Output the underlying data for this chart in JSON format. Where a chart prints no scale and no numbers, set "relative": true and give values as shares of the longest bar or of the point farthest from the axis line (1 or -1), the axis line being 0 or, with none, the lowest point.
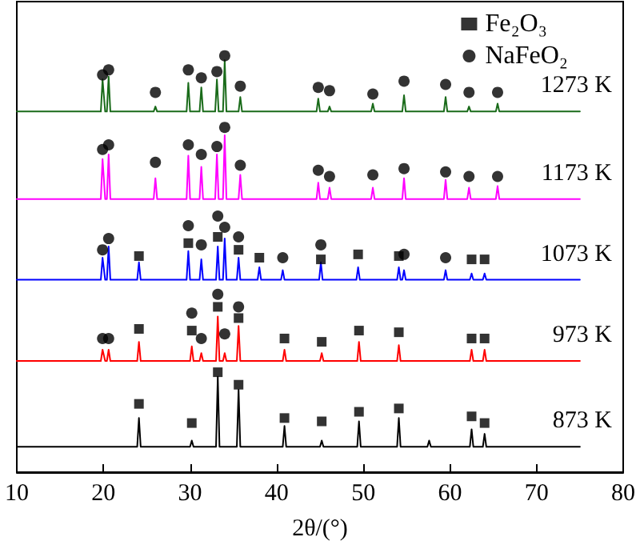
{
  "chart_data": {
    "type": "line",
    "relative": true,
    "xlabel": "2θ/(°)",
    "xlim": [
      10,
      80
    ],
    "xticks": [
      10,
      20,
      30,
      40,
      50,
      60,
      70,
      80
    ],
    "tick_labels": "x",
    "grid": false,
    "legend": "top right",
    "marker": "none",
    "series": [
      {
        "name": "1273 K",
        "color": "#1a6b1a",
        "x": [
          10,
          19.7,
          19.9,
          20.2,
          20.4,
          20.6,
          20.8,
          25.8,
          26,
          26.2,
          29.6,
          29.8,
          30,
          31.1,
          31.3,
          31.5,
          32.9,
          33.1,
          33.3,
          33.8,
          34,
          34.2,
          35.6,
          35.8,
          36,
          44.6,
          44.8,
          45,
          45.9,
          46.1,
          46.3,
          50.9,
          51.1,
          51.3,
          54.5,
          54.7,
          54.9,
          59.3,
          59.5,
          59.7,
          62,
          62.2,
          62.4,
          65.3,
          65.5,
          65.7,
          75
        ],
        "values": [
          0.866,
          0.866,
          0.943,
          0.866,
          0.866,
          0.95,
          0.866,
          0.866,
          0.878,
          0.866,
          0.866,
          0.935,
          0.866,
          0.866,
          0.924,
          0.866,
          0.866,
          0.943,
          0.866,
          0.866,
          0.989,
          0.866,
          0.866,
          0.901,
          0.866,
          0.866,
          0.897,
          0.866,
          0.866,
          0.878,
          0.866,
          0.866,
          0.885,
          0.866,
          0.866,
          0.905,
          0.866,
          0.866,
          0.901,
          0.866,
          0.866,
          0.878,
          0.866,
          0.866,
          0.885,
          0.866,
          0.866
        ]
      },
      {
        "name": "1173 K",
        "color": "#ff00ff",
        "x": [
          10,
          19.7,
          19.9,
          20.2,
          20.4,
          20.6,
          20.8,
          25.8,
          26,
          26.2,
          29.6,
          29.8,
          30,
          31.1,
          31.3,
          31.5,
          32.9,
          33.1,
          33.3,
          33.8,
          34,
          34.2,
          35.6,
          35.8,
          36,
          44.6,
          44.8,
          45,
          45.9,
          46.1,
          46.3,
          50.9,
          51.1,
          51.3,
          54.5,
          54.7,
          54.9,
          59.3,
          59.5,
          59.7,
          62,
          62.2,
          62.4,
          65.3,
          65.5,
          65.7,
          75
        ],
        "values": [
          0.656,
          0.656,
          0.752,
          0.656,
          0.656,
          0.763,
          0.656,
          0.656,
          0.706,
          0.656,
          0.656,
          0.76,
          0.656,
          0.656,
          0.733,
          0.656,
          0.656,
          0.763,
          0.656,
          0.656,
          0.809,
          0.656,
          0.656,
          0.714,
          0.656,
          0.656,
          0.695,
          0.656,
          0.656,
          0.683,
          0.656,
          0.656,
          0.683,
          0.656,
          0.656,
          0.706,
          0.656,
          0.656,
          0.702,
          0.656,
          0.656,
          0.683,
          0.656,
          0.656,
          0.687,
          0.656,
          0.656
        ]
      },
      {
        "name": "1073 K",
        "color": "#0000ff",
        "x": [
          10,
          19.7,
          19.9,
          20.2,
          20.4,
          20.6,
          20.8,
          23.9,
          24.1,
          24.3,
          29.6,
          29.8,
          30,
          31.1,
          31.3,
          31.5,
          33,
          33.2,
          33.4,
          33.8,
          34,
          34.2,
          35.4,
          35.6,
          35.8,
          37.8,
          38,
          38.2,
          40.5,
          40.7,
          40.9,
          44.9,
          45.1,
          45.3,
          49.2,
          49.4,
          49.6,
          53.9,
          54.1,
          54.3,
          54.5,
          54.7,
          54.9,
          59.3,
          59.5,
          59.7,
          62.3,
          62.5,
          62.7,
          63.8,
          64,
          64.2,
          75
        ],
        "values": [
          0.462,
          0.462,
          0.515,
          0.462,
          0.462,
          0.542,
          0.462,
          0.462,
          0.504,
          0.462,
          0.462,
          0.531,
          0.462,
          0.462,
          0.511,
          0.462,
          0.462,
          0.542,
          0.462,
          0.462,
          0.561,
          0.462,
          0.462,
          0.515,
          0.462,
          0.462,
          0.492,
          0.462,
          0.462,
          0.485,
          0.462,
          0.462,
          0.504,
          0.462,
          0.462,
          0.492,
          0.462,
          0.462,
          0.492,
          0.462,
          0.462,
          0.485,
          0.462,
          0.462,
          0.485,
          0.462,
          0.462,
          0.477,
          0.462,
          0.462,
          0.477,
          0.462,
          0.462
        ]
      },
      {
        "name": "973 K",
        "color": "#ff0000",
        "x": [
          10,
          19.7,
          19.9,
          20.2,
          20.4,
          20.6,
          20.8,
          23.9,
          24.1,
          24.3,
          30,
          30.2,
          30.4,
          31.1,
          31.3,
          31.5,
          33,
          33.2,
          33.4,
          33.8,
          34,
          34.2,
          35.4,
          35.6,
          35.8,
          40.7,
          40.9,
          41.1,
          45,
          45.2,
          45.4,
          49.3,
          49.5,
          49.7,
          53.9,
          54.1,
          54.3,
          62.3,
          62.5,
          62.7,
          63.8,
          64,
          64.2,
          75
        ],
        "values": [
          0.267,
          0.267,
          0.294,
          0.267,
          0.267,
          0.294,
          0.267,
          0.267,
          0.313,
          0.267,
          0.267,
          0.302,
          0.267,
          0.267,
          0.286,
          0.267,
          0.267,
          0.374,
          0.267,
          0.267,
          0.286,
          0.267,
          0.267,
          0.351,
          0.267,
          0.267,
          0.294,
          0.267,
          0.267,
          0.286,
          0.267,
          0.267,
          0.313,
          0.267,
          0.267,
          0.305,
          0.267,
          0.267,
          0.294,
          0.267,
          0.267,
          0.294,
          0.267,
          0.267
        ]
      },
      {
        "name": "873 K",
        "color": "#000000",
        "x": [
          10,
          23.9,
          24.1,
          24.3,
          30,
          30.2,
          30.4,
          33,
          33.2,
          33.4,
          35.4,
          35.6,
          35.8,
          40.7,
          40.9,
          41.1,
          45,
          45.2,
          45.4,
          49.3,
          49.5,
          49.7,
          53.9,
          54.1,
          54.3,
          57.4,
          57.6,
          57.8,
          62.3,
          62.5,
          62.7,
          63.8,
          64,
          64.2,
          75
        ],
        "values": [
          0.061,
          0.061,
          0.13,
          0.061,
          0.061,
          0.076,
          0.061,
          0.061,
          0.229,
          0.061,
          0.061,
          0.198,
          0.061,
          0.061,
          0.111,
          0.061,
          0.061,
          0.076,
          0.061,
          0.061,
          0.122,
          0.061,
          0.061,
          0.13,
          0.061,
          0.061,
          0.076,
          0.061,
          0.061,
          0.103,
          0.061,
          0.061,
          0.092,
          0.061,
          0.061
        ]
      },
      {
        "name": "Fe₂O₃",
        "type": "scatter",
        "marker": "square",
        "color": "#000000",
        "x": [
          24.1,
          29.8,
          33.2,
          35.6,
          38,
          45.1,
          49.4,
          54.1,
          62.5,
          64,
          24.1,
          30.2,
          33.2,
          35.6,
          40.9,
          45.2,
          49.5,
          54.1,
          62.5,
          64,
          24.1,
          30.2,
          33.2,
          35.6,
          40.9,
          45.2,
          49.5,
          54.1,
          62.5,
          64
        ],
        "values": [
          0.519,
          0.55,
          0.565,
          0.534,
          0.515,
          0.511,
          0.523,
          0.519,
          0.511,
          0.511,
          0.344,
          0.34,
          0.397,
          0.37,
          0.321,
          0.313,
          0.34,
          0.336,
          0.321,
          0.321,
          0.164,
          0.118,
          0.24,
          0.21,
          0.13,
          0.122,
          0.145,
          0.153,
          0.134,
          0.118
        ]
      },
      {
        "name": "NaFeO₂",
        "type": "scatter",
        "marker": "circle",
        "color": "#000000",
        "x": [
          19.9,
          20.6,
          26,
          29.8,
          31.3,
          33.1,
          34,
          35.8,
          44.8,
          46.1,
          51.1,
          54.7,
          59.5,
          62.2,
          65.5,
          19.9,
          20.6,
          26,
          29.8,
          31.3,
          33.1,
          34,
          35.8,
          44.8,
          46.1,
          51.1,
          54.7,
          59.5,
          62.2,
          65.5,
          19.9,
          20.6,
          29.8,
          31.3,
          33.2,
          34,
          35.6,
          40.7,
          45.1,
          54.7,
          59.5,
          19.9,
          20.6,
          30.2,
          31.3,
          33.2,
          34,
          35.6
        ],
        "values": [
          0.954,
          0.966,
          0.912,
          0.966,
          0.947,
          0.962,
          1.0,
          0.927,
          0.924,
          0.916,
          0.908,
          0.939,
          0.931,
          0.912,
          0.912,
          0.775,
          0.786,
          0.744,
          0.786,
          0.763,
          0.782,
          0.828,
          0.737,
          0.725,
          0.71,
          0.714,
          0.729,
          0.721,
          0.71,
          0.71,
          0.534,
          0.561,
          0.592,
          0.546,
          0.615,
          0.588,
          0.565,
          0.515,
          0.546,
          0.523,
          0.515,
          0.321,
          0.321,
          0.382,
          0.321,
          0.427,
          0.332,
          0.397
        ]
      }
    ]
  }
}
